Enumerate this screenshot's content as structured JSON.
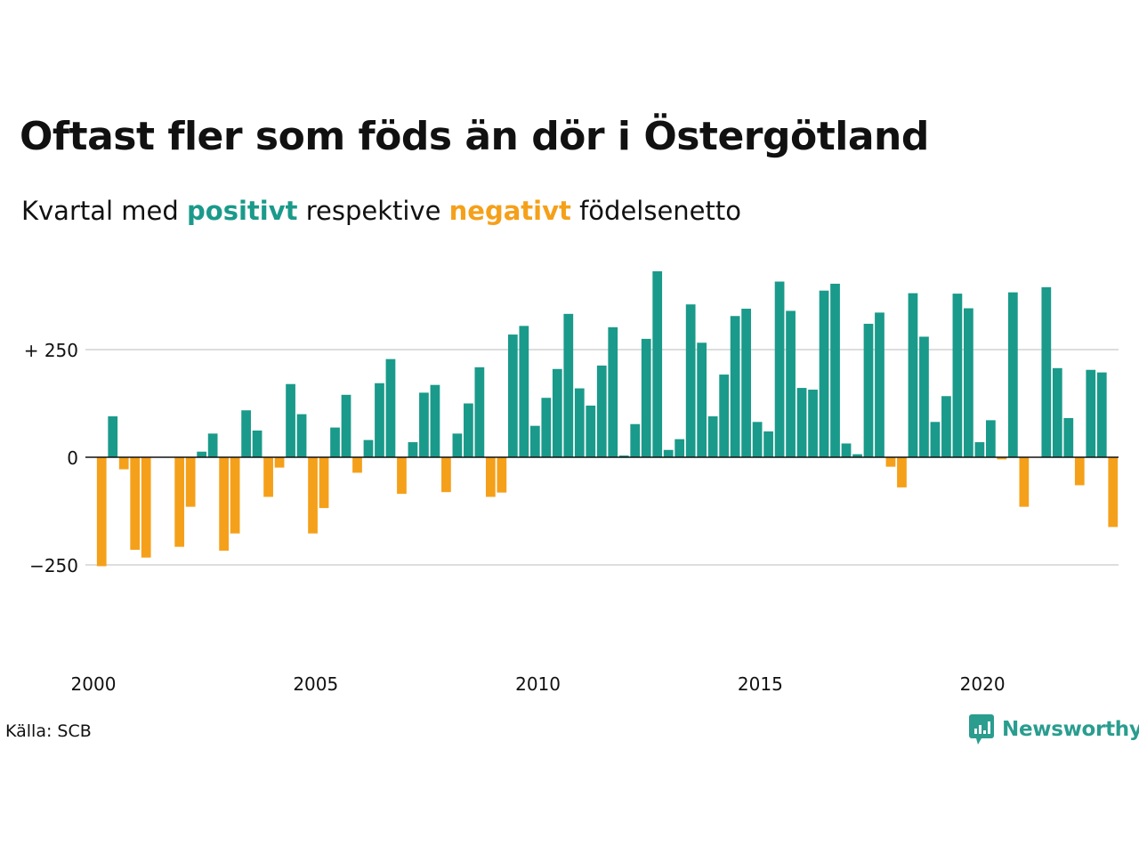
{
  "header": {
    "title": "Oftast fler som föds än dör i Östergötland",
    "subtitle_pre": "Kvartal med",
    "subtitle_positive": "positivt",
    "subtitle_mid": "respektive",
    "subtitle_negative": "negativt",
    "subtitle_post": "födelsenetto"
  },
  "footer": {
    "source": "Källa: SCB",
    "brand": "Newsworthy",
    "brand_icon": "newsworthy-logo-icon"
  },
  "colors": {
    "positive": "#1a9a8a",
    "negative": "#f5a01a",
    "grid": "#dddddd",
    "zero": "#111111",
    "text": "#111111"
  },
  "chart_data": {
    "type": "bar",
    "title": "Oftast fler som föds än dör i Östergötland",
    "subtitle": "Kvartal med positivt respektive negativt födelsenetto",
    "xlabel": "",
    "ylabel": "",
    "ylim": [
      -300,
      430
    ],
    "x_start": "2000 Q1",
    "x_interval": "quarter",
    "yticks": [
      {
        "value": 250,
        "label": "+ 250"
      },
      {
        "value": 0,
        "label": "0"
      },
      {
        "value": -250,
        "label": "−250"
      }
    ],
    "xticks": [
      {
        "year": 2000,
        "label": "2000"
      },
      {
        "year": 2005,
        "label": "2005"
      },
      {
        "year": 2010,
        "label": "2010"
      },
      {
        "year": 2015,
        "label": "2015"
      },
      {
        "year": 2020,
        "label": "2020"
      }
    ],
    "grid": true,
    "legend": "none",
    "values": [
      -253,
      95,
      -28,
      -215,
      -233,
      0,
      0,
      -208,
      -115,
      13,
      55,
      -217,
      -177,
      109,
      62,
      -92,
      -24,
      170,
      100,
      -177,
      -118,
      69,
      145,
      -36,
      40,
      172,
      228,
      -85,
      35,
      150,
      168,
      -81,
      55,
      125,
      209,
      -92,
      -82,
      285,
      305,
      73,
      138,
      205,
      333,
      160,
      120,
      213,
      302,
      4,
      77,
      275,
      432,
      17,
      42,
      355,
      266,
      95,
      192,
      328,
      345,
      82,
      60,
      408,
      340,
      161,
      157,
      387,
      403,
      32,
      7,
      310,
      336,
      -22,
      -70,
      381,
      280,
      82,
      142,
      380,
      346,
      35,
      86,
      -5,
      383,
      -115,
      0,
      395,
      207,
      91,
      -65,
      203,
      197,
      -162
    ]
  }
}
